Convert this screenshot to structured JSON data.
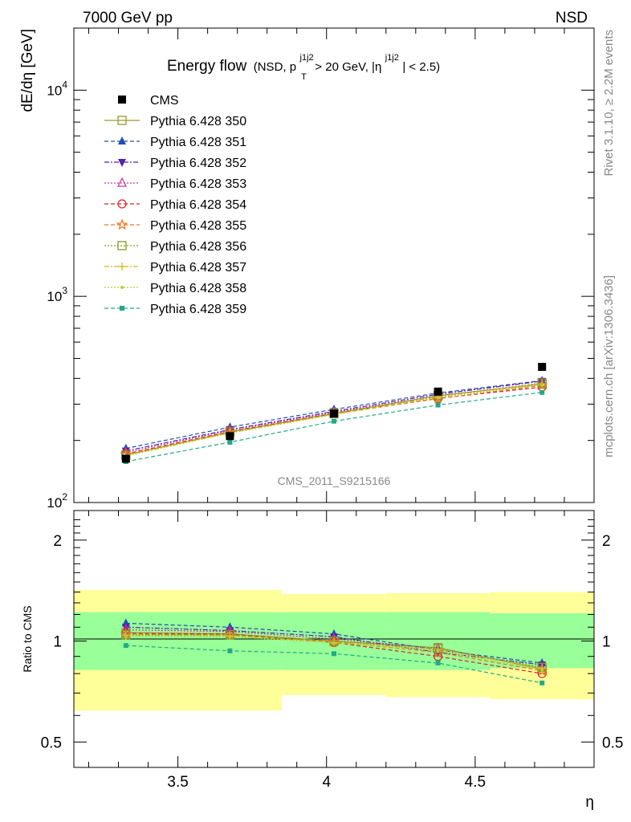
{
  "header": {
    "left": "7000 GeV pp",
    "right": "NSD",
    "side_top": "Rivet 3.1.10, ≥ 2.2M events",
    "side_bottom": "mcplots.cern.ch [arXiv:1306.3436]",
    "watermark": "CMS_2011_S9215166"
  },
  "chart_data": [
    {
      "type": "line",
      "panel": "main",
      "title_main": "Energy flow",
      "title_sub": "(NSD, p",
      "title_sup1": "j1j2",
      "title_subT": "T",
      "title_mid": " > 20 GeV, |η",
      "title_sup2": "j1j2",
      "title_end": "| < 2.5)",
      "ylabel": "dE/dη [GeV]",
      "xlabel": "η",
      "xlim": [
        3.15,
        4.9
      ],
      "ylim": [
        100,
        20000
      ],
      "yscale": "log",
      "x": [
        3.325,
        3.675,
        4.025,
        4.375,
        4.725
      ],
      "x_ticks": [
        "3.5",
        "4",
        "4.5"
      ],
      "y_ticks": [
        {
          "base": "10",
          "exp": "2"
        },
        {
          "base": "10",
          "exp": "3"
        },
        {
          "base": "10",
          "exp": "4"
        }
      ],
      "legend_position": "top-left",
      "cms": {
        "name": "CMS",
        "color": "#000000",
        "values": [
          163,
          210,
          270,
          345,
          455
        ]
      },
      "series": [
        {
          "name": "Pythia 6.428 350",
          "color": "#999933",
          "marker": "square-open",
          "dash": "",
          "values": [
            170,
            220,
            270,
            330,
            375
          ]
        },
        {
          "name": "Pythia 6.428 351",
          "color": "#1f4fb4",
          "marker": "triangle-up-filled",
          "dash": "5,3",
          "values": [
            183,
            232,
            283,
            340,
            390
          ]
        },
        {
          "name": "Pythia 6.428 352",
          "color": "#5522aa",
          "marker": "triangle-down-filled",
          "dash": "6,2,2,2",
          "values": [
            178,
            226,
            277,
            335,
            388
          ]
        },
        {
          "name": "Pythia 6.428 353",
          "color": "#cc3399",
          "marker": "triangle-up-open",
          "dash": "2,2",
          "values": [
            175,
            224,
            274,
            329,
            378
          ]
        },
        {
          "name": "Pythia 6.428 354",
          "color": "#dd2222",
          "marker": "circle-open",
          "dash": "5,3",
          "values": [
            172,
            221,
            271,
            320,
            363
          ]
        },
        {
          "name": "Pythia 6.428 355",
          "color": "#ee7722",
          "marker": "star-open",
          "dash": "5,3",
          "values": [
            171,
            219,
            269,
            319,
            370
          ]
        },
        {
          "name": "Pythia 6.428 356",
          "color": "#889922",
          "marker": "square-open",
          "dash": "2,2",
          "values": [
            170,
            220,
            271,
            328,
            380
          ]
        },
        {
          "name": "Pythia 6.428 357",
          "color": "#ccbb22",
          "marker": "cross",
          "dash": "6,2,2,2",
          "values": [
            169,
            218,
            268,
            326,
            377
          ]
        },
        {
          "name": "Pythia 6.428 358",
          "color": "#bbcc33",
          "marker": "dot",
          "dash": "2,2",
          "values": [
            168,
            217,
            267,
            323,
            372
          ]
        },
        {
          "name": "Pythia 6.428 359",
          "color": "#22aa88",
          "marker": "square-filled-small",
          "dash": "5,3",
          "values": [
            158,
            196,
            248,
            297,
            342
          ]
        }
      ]
    },
    {
      "type": "line",
      "panel": "ratio",
      "ylabel": "Ratio to CMS",
      "yscale": "log",
      "ylim": [
        0.42,
        2.45
      ],
      "y_ticks": [
        "0.5",
        "1",
        "2"
      ],
      "x": [
        3.325,
        3.675,
        4.025,
        4.375,
        4.725
      ],
      "bands": [
        {
          "x0": 3.15,
          "x1": 3.85,
          "yellow": [
            0.62,
            1.42
          ],
          "green": [
            0.82,
            1.22
          ]
        },
        {
          "x0": 3.85,
          "x1": 4.2,
          "yellow": [
            0.69,
            1.38
          ],
          "green": [
            0.82,
            1.22
          ]
        },
        {
          "x0": 4.2,
          "x1": 4.55,
          "yellow": [
            0.68,
            1.39
          ],
          "green": [
            0.82,
            1.22
          ]
        },
        {
          "x0": 4.55,
          "x1": 4.9,
          "yellow": [
            0.67,
            1.4
          ],
          "green": [
            0.83,
            1.21
          ]
        }
      ],
      "band_colors": {
        "yellow": "#ffff99",
        "green": "#99ff99"
      },
      "series_values": [
        [
          1.06,
          1.05,
          1.0,
          0.956,
          0.825
        ],
        [
          1.13,
          1.1,
          1.05,
          0.94,
          0.86
        ],
        [
          1.1,
          1.075,
          1.03,
          0.925,
          0.85
        ],
        [
          1.08,
          1.067,
          1.015,
          0.95,
          0.83
        ],
        [
          1.055,
          1.05,
          0.99,
          0.9,
          0.8
        ],
        [
          1.05,
          1.04,
          0.995,
          0.925,
          0.815
        ],
        [
          1.045,
          1.045,
          1.0,
          0.95,
          0.835
        ],
        [
          1.04,
          1.038,
          0.99,
          0.945,
          0.83
        ],
        [
          1.035,
          1.03,
          0.988,
          0.935,
          0.82
        ],
        [
          0.97,
          0.935,
          0.917,
          0.86,
          0.75
        ]
      ]
    }
  ]
}
